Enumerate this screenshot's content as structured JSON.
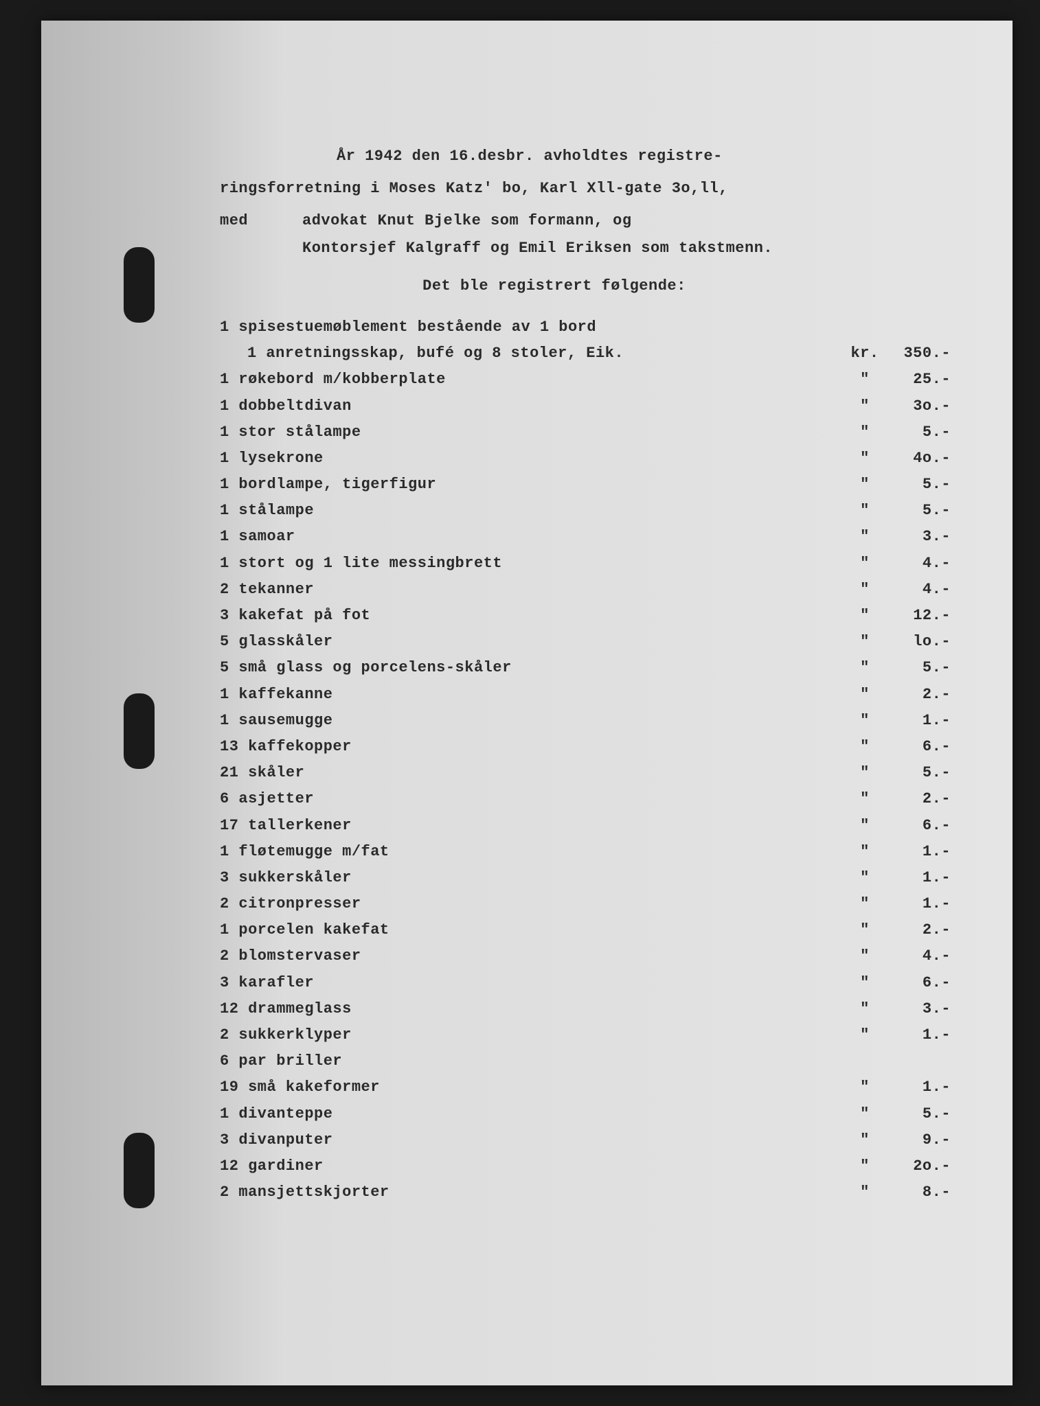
{
  "document": {
    "background_color": "#1a1a1a",
    "paper_gradient_start": "#b8b8b8",
    "paper_gradient_end": "#e5e5e5",
    "text_color": "#2a2a2a",
    "font_size": 22,
    "font_family": "Courier New"
  },
  "intro": {
    "line1": "År 1942 den 16.desbr. avholdtes registre-",
    "line2": "ringsforretning i Moses Katz' bo, Karl Xll-gate 3o,ll,",
    "med_label": "med",
    "med_line1": "advokat Knut Bjelke som formann, og",
    "med_line2": "Kontorsjef Kalgraff og Emil Eriksen som takstmenn."
  },
  "subtitle": "Det ble registrert følgende:",
  "currency_label": "kr.",
  "ditto_mark": "\"",
  "items": [
    {
      "desc": "1 spisestuemøblement bestående av 1 bord",
      "desc2": "1 anretningsskap, bufé og 8 stoler, Eik.",
      "curr": "kr.",
      "price": "350.-"
    },
    {
      "desc": "1 røkebord m/kobberplate",
      "curr": "\"",
      "price": "25.-"
    },
    {
      "desc": "1 dobbeltdivan",
      "curr": "\"",
      "price": "3o.-"
    },
    {
      "desc": "1 stor stålampe",
      "curr": "\"",
      "price": "5.-"
    },
    {
      "desc": "1 lysekrone",
      "curr": "\"",
      "price": "4o.-"
    },
    {
      "desc": "1 bordlampe, tigerfigur",
      "curr": "\"",
      "price": "5.-"
    },
    {
      "desc": "1 stålampe",
      "curr": "\"",
      "price": "5.-"
    },
    {
      "desc": "1 samoar",
      "curr": "\"",
      "price": "3.-"
    },
    {
      "desc": "1 stort og 1 lite messingbrett",
      "curr": "\"",
      "price": "4.-"
    },
    {
      "desc": "2 tekanner",
      "curr": "\"",
      "price": "4.-"
    },
    {
      "desc": "3 kakefat på fot",
      "curr": "\"",
      "price": "12.-"
    },
    {
      "desc": "5 glasskåler",
      "curr": "\"",
      "price": "lo.-"
    },
    {
      "desc": "5 små glass og porcelens-skåler",
      "curr": "\"",
      "price": "5.-"
    },
    {
      "desc": "1 kaffekanne",
      "curr": "\"",
      "price": "2.-"
    },
    {
      "desc": "1 sausemugge",
      "curr": "\"",
      "price": "1.-"
    },
    {
      "desc": "13 kaffekopper",
      "curr": "\"",
      "price": "6.-"
    },
    {
      "desc": "21 skåler",
      "curr": "\"",
      "price": "5.-"
    },
    {
      "desc": "6 asjetter",
      "curr": "\"",
      "price": "2.-"
    },
    {
      "desc": "17 tallerkener",
      "curr": "\"",
      "price": "6.-"
    },
    {
      "desc": "1 fløtemugge m/fat",
      "curr": "\"",
      "price": "1.-"
    },
    {
      "desc": "3 sukkerskåler",
      "curr": "\"",
      "price": "1.-"
    },
    {
      "desc": "2 citronpresser",
      "curr": "\"",
      "price": "1.-"
    },
    {
      "desc": "1 porcelen kakefat",
      "curr": "\"",
      "price": "2.-"
    },
    {
      "desc": "2 blomstervaser",
      "curr": "\"",
      "price": "4.-"
    },
    {
      "desc": "3 karafler",
      "curr": "\"",
      "price": "6.-"
    },
    {
      "desc": "12 drammeglass",
      "curr": "\"",
      "price": "3.-"
    },
    {
      "desc": "2 sukkerklyper",
      "curr": "\"",
      "price": "1.-"
    },
    {
      "desc": "6 par briller",
      "curr": "",
      "price": ""
    },
    {
      "desc": "19 små kakeformer",
      "curr": "\"",
      "price": "1.-"
    },
    {
      "desc": "1 divanteppe",
      "curr": "\"",
      "price": "5.-"
    },
    {
      "desc": "3 divanputer",
      "curr": "\"",
      "price": "9.-"
    },
    {
      "desc": "12 gardiner",
      "curr": "\"",
      "price": "2o.-"
    },
    {
      "desc": "2 mansjettskjorter",
      "curr": "\"",
      "price": "8.-"
    }
  ]
}
